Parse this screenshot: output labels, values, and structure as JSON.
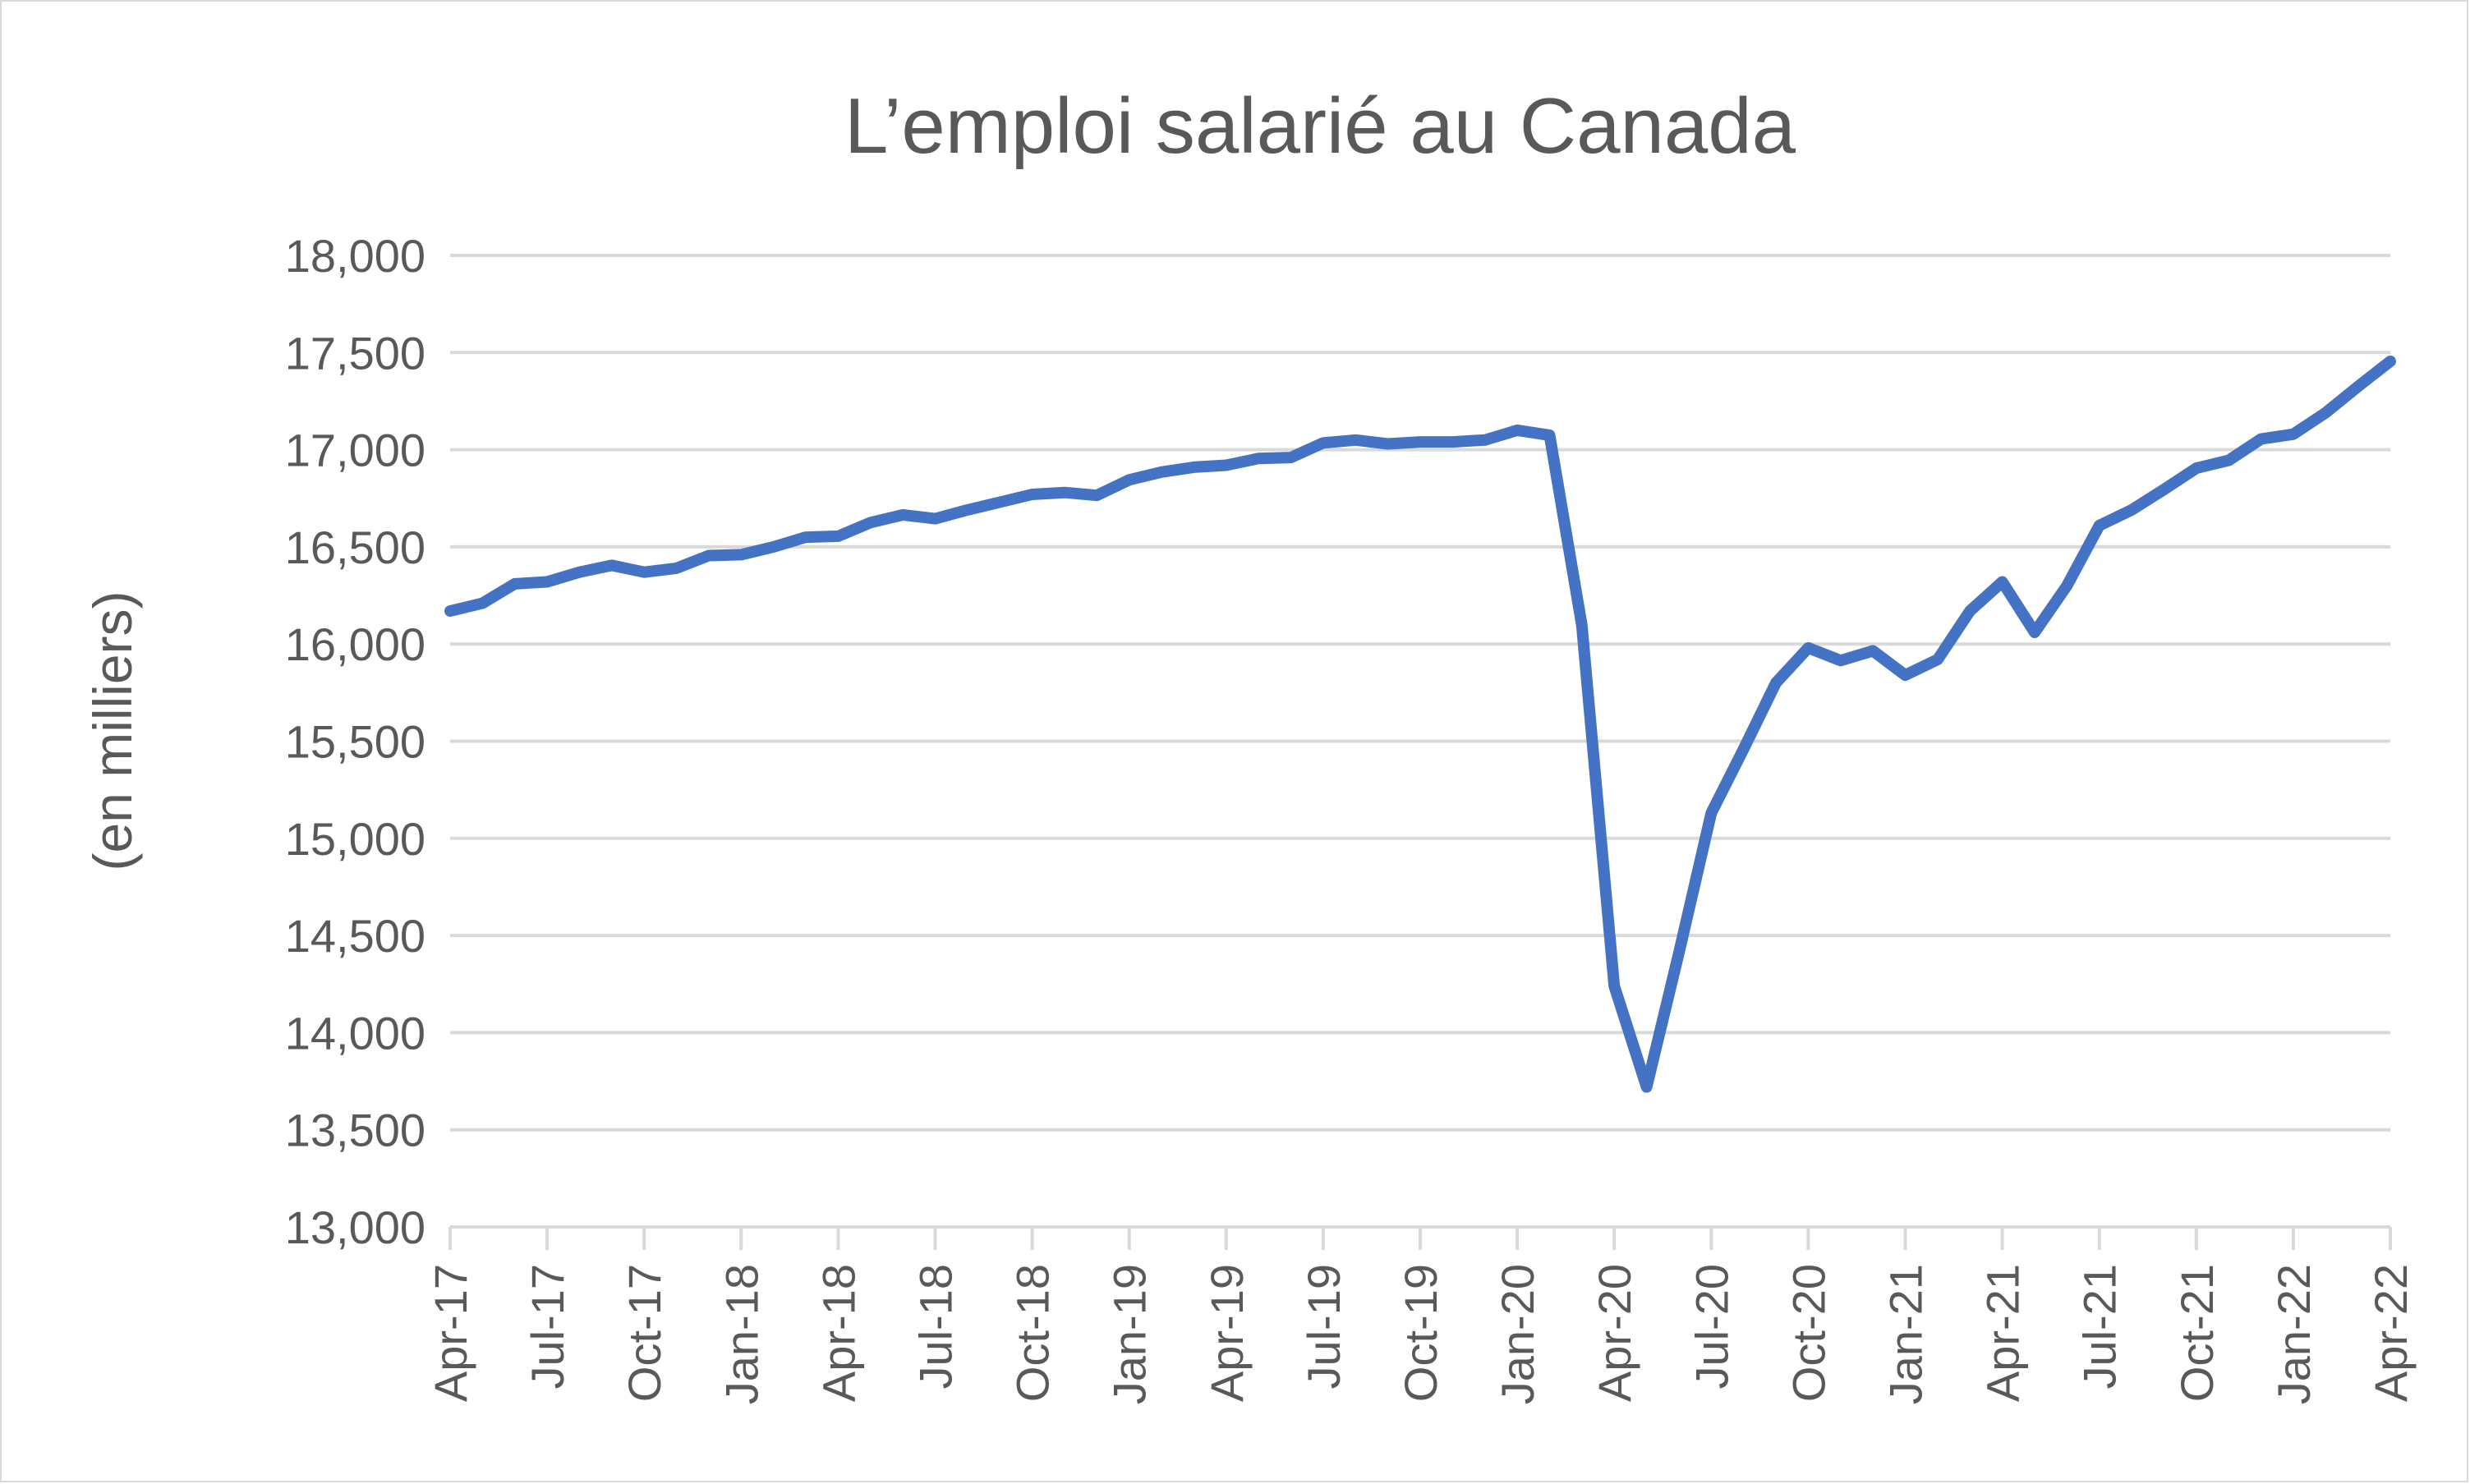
{
  "chart_data": {
    "type": "line",
    "title": "L’emploi salarié au Canada",
    "xlabel": "",
    "ylabel": "(en milliers)",
    "ylim": [
      13000,
      18000
    ],
    "yticks": [
      13000,
      13500,
      14000,
      14500,
      15000,
      15500,
      16000,
      16500,
      17000,
      17500,
      18000
    ],
    "ytick_labels": [
      "13,000",
      "13,500",
      "14,000",
      "14,500",
      "15,000",
      "15,500",
      "16,000",
      "16,500",
      "17,000",
      "17,500",
      "18,000"
    ],
    "x_tick_labels": [
      "Apr-17",
      "Jul-17",
      "Oct-17",
      "Jan-18",
      "Apr-18",
      "Jul-18",
      "Oct-18",
      "Jan-19",
      "Apr-19",
      "Jul-19",
      "Oct-19",
      "Jan-20",
      "Apr-20",
      "Jul-20",
      "Oct-20",
      "Jan-21",
      "Apr-21",
      "Jul-21",
      "Oct-21",
      "Jan-22",
      "Apr-22"
    ],
    "grid": true,
    "legend": "none",
    "series_color": "#4472c4",
    "series": [
      {
        "values": [
          16170,
          16210,
          16310,
          16320,
          16370,
          16405,
          16370,
          16390,
          16455,
          16460,
          16500,
          16550,
          16555,
          16625,
          16665,
          16645,
          16690,
          16730,
          16770,
          16780,
          16765,
          16845,
          16885,
          16910,
          16920,
          16955,
          16960,
          17035,
          17050,
          17030,
          17040,
          17040,
          17050,
          17100,
          17075,
          16095,
          14240,
          13720,
          14410,
          15130,
          15460,
          15800,
          15980,
          15915,
          15965,
          15840,
          15920,
          16170,
          16320,
          16060,
          16300,
          16610,
          16690,
          16795,
          16905,
          16945,
          17055,
          17080,
          17190,
          17325,
          17455
        ]
      }
    ]
  }
}
